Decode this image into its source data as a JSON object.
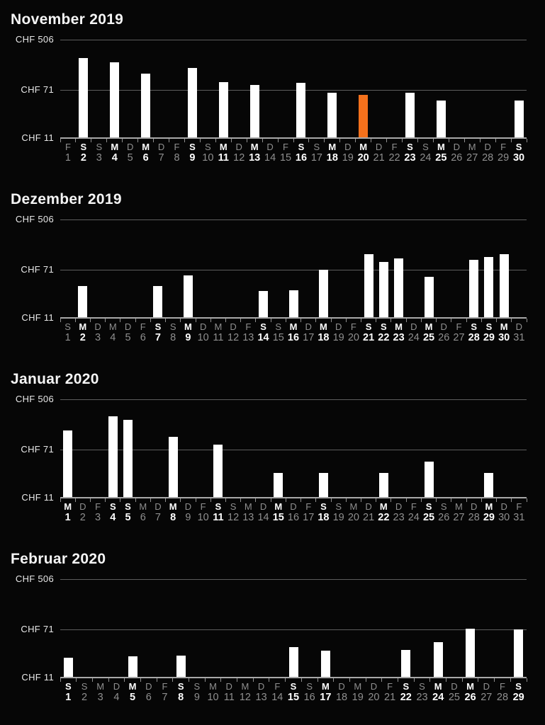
{
  "page": {
    "background": "#060606"
  },
  "colors": {
    "bar": "#ffffff",
    "selected_bar": "#F4711C",
    "gridline": "#5d5d5d",
    "axis_line": "#a8a8a8",
    "tick": "#8f8f8f",
    "title": "#f5f5f5",
    "label_active": "#ffffff",
    "label_inactive": "#8f8f8f",
    "y_label": "#e8e8e8"
  },
  "y_axis": {
    "scale": "log",
    "currency": "CHF",
    "values": [
      506,
      71,
      11
    ],
    "labels": [
      "CHF 506",
      "CHF 71",
      "CHF 11"
    ]
  },
  "chart_data": [
    {
      "type": "bar",
      "title": "November 2019",
      "currency": "CHF",
      "yscale": "log",
      "ylim": [
        11,
        506
      ],
      "yticks": [
        506,
        71,
        11
      ],
      "selected_day": 20,
      "days": [
        {
          "day": 1,
          "weekday": "F",
          "price": null
        },
        {
          "day": 2,
          "weekday": "S",
          "price": 245
        },
        {
          "day": 3,
          "weekday": "S",
          "price": null
        },
        {
          "day": 4,
          "weekday": "M",
          "price": 210
        },
        {
          "day": 5,
          "weekday": "D",
          "price": null
        },
        {
          "day": 6,
          "weekday": "M",
          "price": 135
        },
        {
          "day": 7,
          "weekday": "D",
          "price": null
        },
        {
          "day": 8,
          "weekday": "F",
          "price": null
        },
        {
          "day": 9,
          "weekday": "S",
          "price": 170
        },
        {
          "day": 10,
          "weekday": "S",
          "price": null
        },
        {
          "day": 11,
          "weekday": "M",
          "price": 96
        },
        {
          "day": 12,
          "weekday": "D",
          "price": null
        },
        {
          "day": 13,
          "weekday": "M",
          "price": 87
        },
        {
          "day": 14,
          "weekday": "D",
          "price": null
        },
        {
          "day": 15,
          "weekday": "F",
          "price": null
        },
        {
          "day": 16,
          "weekday": "S",
          "price": 93
        },
        {
          "day": 17,
          "weekday": "S",
          "price": null
        },
        {
          "day": 18,
          "weekday": "M",
          "price": 65
        },
        {
          "day": 19,
          "weekday": "D",
          "price": null
        },
        {
          "day": 20,
          "weekday": "M",
          "price": 59,
          "selected": true
        },
        {
          "day": 21,
          "weekday": "D",
          "price": null
        },
        {
          "day": 22,
          "weekday": "F",
          "price": null
        },
        {
          "day": 23,
          "weekday": "S",
          "price": 64
        },
        {
          "day": 24,
          "weekday": "S",
          "price": null
        },
        {
          "day": 25,
          "weekday": "M",
          "price": 47
        },
        {
          "day": 26,
          "weekday": "D",
          "price": null
        },
        {
          "day": 27,
          "weekday": "M",
          "price": null
        },
        {
          "day": 28,
          "weekday": "D",
          "price": null
        },
        {
          "day": 29,
          "weekday": "F",
          "price": null
        },
        {
          "day": 30,
          "weekday": "S",
          "price": 48
        }
      ]
    },
    {
      "type": "bar",
      "title": "Dezember 2019",
      "currency": "CHF",
      "yscale": "log",
      "ylim": [
        11,
        506
      ],
      "yticks": [
        506,
        71,
        11
      ],
      "days": [
        {
          "day": 1,
          "weekday": "S",
          "price": null
        },
        {
          "day": 2,
          "weekday": "M",
          "price": 38
        },
        {
          "day": 3,
          "weekday": "D",
          "price": null
        },
        {
          "day": 4,
          "weekday": "M",
          "price": null
        },
        {
          "day": 5,
          "weekday": "D",
          "price": null
        },
        {
          "day": 6,
          "weekday": "F",
          "price": null
        },
        {
          "day": 7,
          "weekday": "S",
          "price": 38
        },
        {
          "day": 8,
          "weekday": "S",
          "price": null
        },
        {
          "day": 9,
          "weekday": "M",
          "price": 57
        },
        {
          "day": 10,
          "weekday": "D",
          "price": null
        },
        {
          "day": 11,
          "weekday": "M",
          "price": null
        },
        {
          "day": 12,
          "weekday": "D",
          "price": null
        },
        {
          "day": 13,
          "weekday": "F",
          "price": null
        },
        {
          "day": 14,
          "weekday": "S",
          "price": 31
        },
        {
          "day": 15,
          "weekday": "S",
          "price": null
        },
        {
          "day": 16,
          "weekday": "M",
          "price": 32
        },
        {
          "day": 17,
          "weekday": "D",
          "price": null
        },
        {
          "day": 18,
          "weekday": "M",
          "price": 72
        },
        {
          "day": 19,
          "weekday": "D",
          "price": null
        },
        {
          "day": 20,
          "weekday": "F",
          "price": null
        },
        {
          "day": 21,
          "weekday": "S",
          "price": 130
        },
        {
          "day": 22,
          "weekday": "S",
          "price": 97
        },
        {
          "day": 23,
          "weekday": "M",
          "price": 110
        },
        {
          "day": 24,
          "weekday": "D",
          "price": null
        },
        {
          "day": 25,
          "weekday": "M",
          "price": 54
        },
        {
          "day": 26,
          "weekday": "D",
          "price": null
        },
        {
          "day": 27,
          "weekday": "F",
          "price": null
        },
        {
          "day": 28,
          "weekday": "S",
          "price": 104
        },
        {
          "day": 29,
          "weekday": "S",
          "price": 119
        },
        {
          "day": 30,
          "weekday": "M",
          "price": 132
        },
        {
          "day": 31,
          "weekday": "D",
          "price": null
        }
      ]
    },
    {
      "type": "bar",
      "title": "Januar 2020",
      "currency": "CHF",
      "yscale": "log",
      "ylim": [
        11,
        506
      ],
      "yticks": [
        506,
        71,
        11
      ],
      "days": [
        {
          "day": 1,
          "weekday": "M",
          "price": 150
        },
        {
          "day": 2,
          "weekday": "D",
          "price": null
        },
        {
          "day": 3,
          "weekday": "F",
          "price": null
        },
        {
          "day": 4,
          "weekday": "S",
          "price": 259
        },
        {
          "day": 5,
          "weekday": "S",
          "price": 230
        },
        {
          "day": 6,
          "weekday": "M",
          "price": null
        },
        {
          "day": 7,
          "weekday": "D",
          "price": null
        },
        {
          "day": 8,
          "weekday": "M",
          "price": 116
        },
        {
          "day": 9,
          "weekday": "D",
          "price": null
        },
        {
          "day": 10,
          "weekday": "F",
          "price": null
        },
        {
          "day": 11,
          "weekday": "S",
          "price": 88
        },
        {
          "day": 12,
          "weekday": "S",
          "price": null
        },
        {
          "day": 13,
          "weekday": "M",
          "price": null
        },
        {
          "day": 14,
          "weekday": "D",
          "price": null
        },
        {
          "day": 15,
          "weekday": "M",
          "price": 29
        },
        {
          "day": 16,
          "weekday": "D",
          "price": null
        },
        {
          "day": 17,
          "weekday": "F",
          "price": null
        },
        {
          "day": 18,
          "weekday": "S",
          "price": 29
        },
        {
          "day": 19,
          "weekday": "S",
          "price": null
        },
        {
          "day": 20,
          "weekday": "M",
          "price": null
        },
        {
          "day": 21,
          "weekday": "D",
          "price": null
        },
        {
          "day": 22,
          "weekday": "M",
          "price": 29
        },
        {
          "day": 23,
          "weekday": "D",
          "price": null
        },
        {
          "day": 24,
          "weekday": "F",
          "price": null
        },
        {
          "day": 25,
          "weekday": "S",
          "price": 45
        },
        {
          "day": 26,
          "weekday": "S",
          "price": null
        },
        {
          "day": 27,
          "weekday": "M",
          "price": null
        },
        {
          "day": 28,
          "weekday": "D",
          "price": null
        },
        {
          "day": 29,
          "weekday": "M",
          "price": 29
        },
        {
          "day": 30,
          "weekday": "D",
          "price": null
        },
        {
          "day": 31,
          "weekday": "F",
          "price": null
        }
      ]
    },
    {
      "type": "bar",
      "title": "Februar 2020",
      "currency": "CHF",
      "yscale": "log",
      "ylim": [
        11,
        506
      ],
      "yticks": [
        506,
        71,
        11
      ],
      "days": [
        {
          "day": 1,
          "weekday": "S",
          "price": 24
        },
        {
          "day": 2,
          "weekday": "S",
          "price": null
        },
        {
          "day": 3,
          "weekday": "M",
          "price": null
        },
        {
          "day": 4,
          "weekday": "D",
          "price": null
        },
        {
          "day": 5,
          "weekday": "M",
          "price": 25
        },
        {
          "day": 6,
          "weekday": "D",
          "price": null
        },
        {
          "day": 7,
          "weekday": "F",
          "price": null
        },
        {
          "day": 8,
          "weekday": "S",
          "price": 26
        },
        {
          "day": 9,
          "weekday": "S",
          "price": null
        },
        {
          "day": 10,
          "weekday": "M",
          "price": null
        },
        {
          "day": 11,
          "weekday": "D",
          "price": null
        },
        {
          "day": 12,
          "weekday": "M",
          "price": null
        },
        {
          "day": 13,
          "weekday": "D",
          "price": null
        },
        {
          "day": 14,
          "weekday": "F",
          "price": null
        },
        {
          "day": 15,
          "weekday": "S",
          "price": 36
        },
        {
          "day": 16,
          "weekday": "S",
          "price": null
        },
        {
          "day": 17,
          "weekday": "M",
          "price": 31
        },
        {
          "day": 18,
          "weekday": "D",
          "price": null
        },
        {
          "day": 19,
          "weekday": "M",
          "price": null
        },
        {
          "day": 20,
          "weekday": "D",
          "price": null
        },
        {
          "day": 21,
          "weekday": "F",
          "price": null
        },
        {
          "day": 22,
          "weekday": "S",
          "price": 32
        },
        {
          "day": 23,
          "weekday": "S",
          "price": null
        },
        {
          "day": 24,
          "weekday": "M",
          "price": 44
        },
        {
          "day": 25,
          "weekday": "D",
          "price": null
        },
        {
          "day": 26,
          "weekday": "M",
          "price": 74
        },
        {
          "day": 27,
          "weekday": "D",
          "price": null
        },
        {
          "day": 28,
          "weekday": "F",
          "price": null
        },
        {
          "day": 29,
          "weekday": "S",
          "price": 71
        }
      ]
    }
  ]
}
